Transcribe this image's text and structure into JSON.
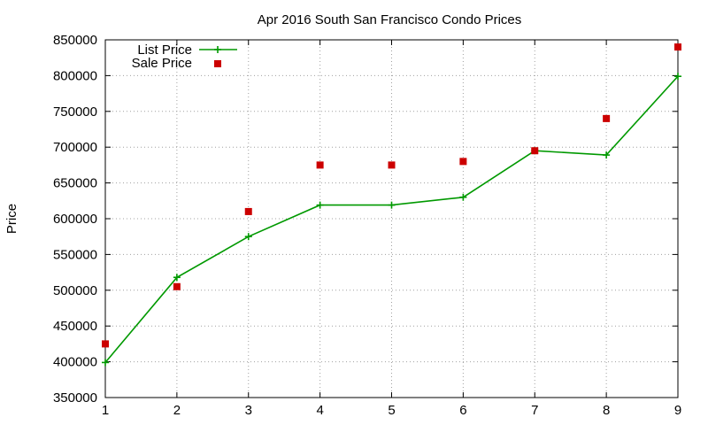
{
  "chart_data": {
    "type": "line",
    "title": "Apr 2016 South San Francisco Condo Prices",
    "xlabel": "",
    "ylabel": "Price",
    "x": [
      1,
      2,
      3,
      4,
      5,
      6,
      7,
      8,
      9
    ],
    "xlim": [
      1,
      9
    ],
    "ylim": [
      350000,
      850000
    ],
    "x_ticks": [
      1,
      2,
      3,
      4,
      5,
      6,
      7,
      8,
      9
    ],
    "y_ticks": [
      350000,
      400000,
      450000,
      500000,
      550000,
      600000,
      650000,
      700000,
      750000,
      800000,
      850000
    ],
    "grid": true,
    "legend_position": "top-left",
    "series": [
      {
        "name": "List Price",
        "style": "line with plus markers",
        "color": "#009900",
        "values": [
          399000,
          518000,
          575000,
          619000,
          619000,
          630000,
          695000,
          689000,
          799000
        ]
      },
      {
        "name": "Sale Price",
        "style": "square markers",
        "color": "#cc0000",
        "values": [
          425000,
          505000,
          610000,
          675000,
          675000,
          680000,
          695000,
          740000,
          840000
        ]
      }
    ]
  }
}
